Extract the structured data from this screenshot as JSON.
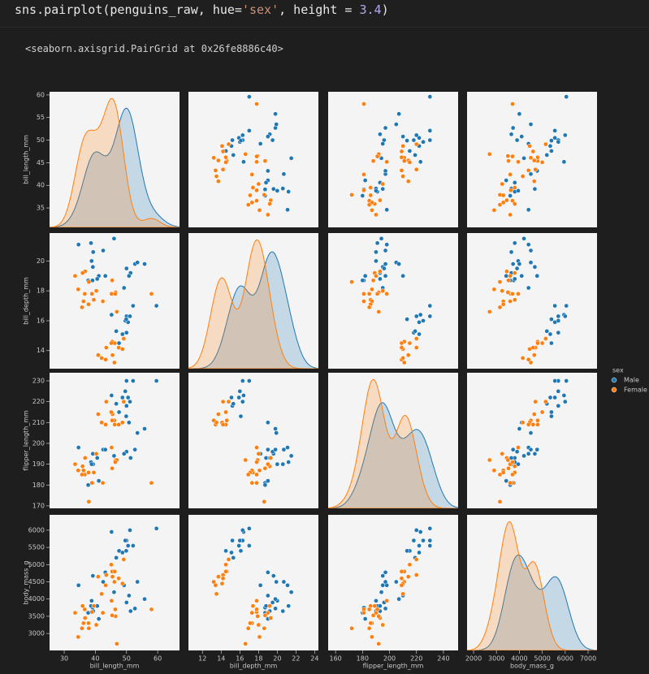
{
  "notebook": {
    "code_tokens": [
      "sns.pairplot(penguins_raw, hue=",
      "'sex'",
      ", height = ",
      "3.4",
      ")"
    ],
    "output": "<seaborn.axisgrid.PairGrid at 0x26fe8886c40>"
  },
  "chart_data": {
    "type": "pairplot",
    "variables": [
      "bill_length_mm",
      "bill_depth_mm",
      "flipper_length_mm",
      "body_mass_g"
    ],
    "axes": [
      {
        "xlim": [
          25.3,
          67
        ],
        "xticks": [
          30,
          40,
          50,
          60
        ],
        "ylim": [
          30.7,
          60.7
        ],
        "yticks": [
          35,
          40,
          45,
          50,
          55,
          60
        ]
      },
      {
        "xlim": [
          10.5,
          24.4
        ],
        "xticks": [
          12,
          14,
          16,
          18,
          20,
          22,
          24
        ],
        "ylim": [
          12.79,
          21.87
        ],
        "yticks": [
          14,
          16,
          18,
          20
        ]
      },
      {
        "xlim": [
          154.5,
          250.9
        ],
        "xticks": [
          160,
          180,
          200,
          220,
          240
        ],
        "ylim": [
          168.8,
          233.9
        ],
        "yticks": [
          170,
          180,
          190,
          200,
          210,
          220,
          230
        ]
      },
      {
        "xlim": [
          1716,
          7390
        ],
        "xticks": [
          2000,
          3000,
          4000,
          5000,
          6000,
          7000
        ],
        "ylim": [
          2507,
          6446
        ],
        "yticks": [
          3000,
          3500,
          4000,
          4500,
          5000,
          5500,
          6000
        ]
      }
    ],
    "legend_title": "sex",
    "legend": "right",
    "series": [
      {
        "name": "Male",
        "color": "#1f77b4",
        "values": [
          [
            39.1,
            39.3,
            39.2,
            38.6,
            34.6,
            42.5,
            46.0,
            37.7,
            41.1,
            38.8,
            40.6,
            43.2,
            50.0,
            51.3,
            52.7,
            53.5,
            49.2,
            55.8,
            50.8,
            50.0,
            50.0,
            47.6,
            46.7,
            49.6,
            50.5,
            48.7,
            59.6,
            45.2,
            49.9,
            52.1,
            51.1
          ],
          [
            18.7,
            20.6,
            19.6,
            21.2,
            21.1,
            20.7,
            21.5,
            18.7,
            19.0,
            20.0,
            18.8,
            19.0,
            19.5,
            19.2,
            19.8,
            19.9,
            18.2,
            19.8,
            19.0,
            16.3,
            15.2,
            14.5,
            15.3,
            16.0,
            15.9,
            15.1,
            17.0,
            16.4,
            16.1,
            17.0,
            16.3
          ],
          [
            181,
            190,
            195,
            191,
            198,
            197,
            194,
            180,
            182,
            190,
            193,
            197,
            196,
            193,
            197,
            205,
            195,
            207,
            210,
            230,
            218,
            215,
            219,
            225,
            222,
            222,
            230,
            223,
            213,
            230,
            220
          ],
          [
            3750,
            3650,
            4675,
            3800,
            4400,
            4500,
            4200,
            3600,
            3425,
            3950,
            3800,
            4775,
            3900,
            3650,
            3725,
            4500,
            4400,
            4000,
            4100,
            5700,
            5700,
            5400,
            5200,
            5700,
            5550,
            5350,
            6050,
            5950,
            5400,
            5550,
            6000
          ]
        ]
      },
      {
        "name": "Female",
        "color": "#ff7f0e",
        "values": [
          [
            39.5,
            40.3,
            36.7,
            38.9,
            36.6,
            35.9,
            37.9,
            34.5,
            36.2,
            33.5,
            37.8,
            35.7,
            46.5,
            45.4,
            46.9,
            45.2,
            58.0,
            42.4,
            46.4,
            46.1,
            48.7,
            45.4,
            43.3,
            40.9,
            45.5,
            42.0,
            46.2,
            45.1,
            43.5,
            47.5,
            49.1
          ],
          [
            17.4,
            18.0,
            19.3,
            17.8,
            17.8,
            19.2,
            18.6,
            18.1,
            17.3,
            19.0,
            17.1,
            16.9,
            17.9,
            18.7,
            16.6,
            17.8,
            17.8,
            17.3,
            17.8,
            13.2,
            14.1,
            14.6,
            13.4,
            13.7,
            13.7,
            13.5,
            14.5,
            14.5,
            14.2,
            14.2,
            14.8
          ],
          [
            186,
            195,
            193,
            181,
            185,
            189,
            172,
            187,
            187,
            190,
            186,
            185,
            192,
            188,
            192,
            198,
            181,
            181,
            191,
            211,
            210,
            211,
            209,
            214,
            214,
            210,
            209,
            215,
            220,
            209,
            220
          ],
          [
            3800,
            3250,
            3450,
            3625,
            3700,
            3800,
            3150,
            2900,
            3300,
            3600,
            3300,
            3150,
            3500,
            3525,
            2700,
            3950,
            3700,
            3600,
            3700,
            4500,
            4450,
            4800,
            4400,
            4650,
            4650,
            4150,
            4800,
            5000,
            4700,
            4600,
            5150
          ]
        ]
      }
    ]
  }
}
